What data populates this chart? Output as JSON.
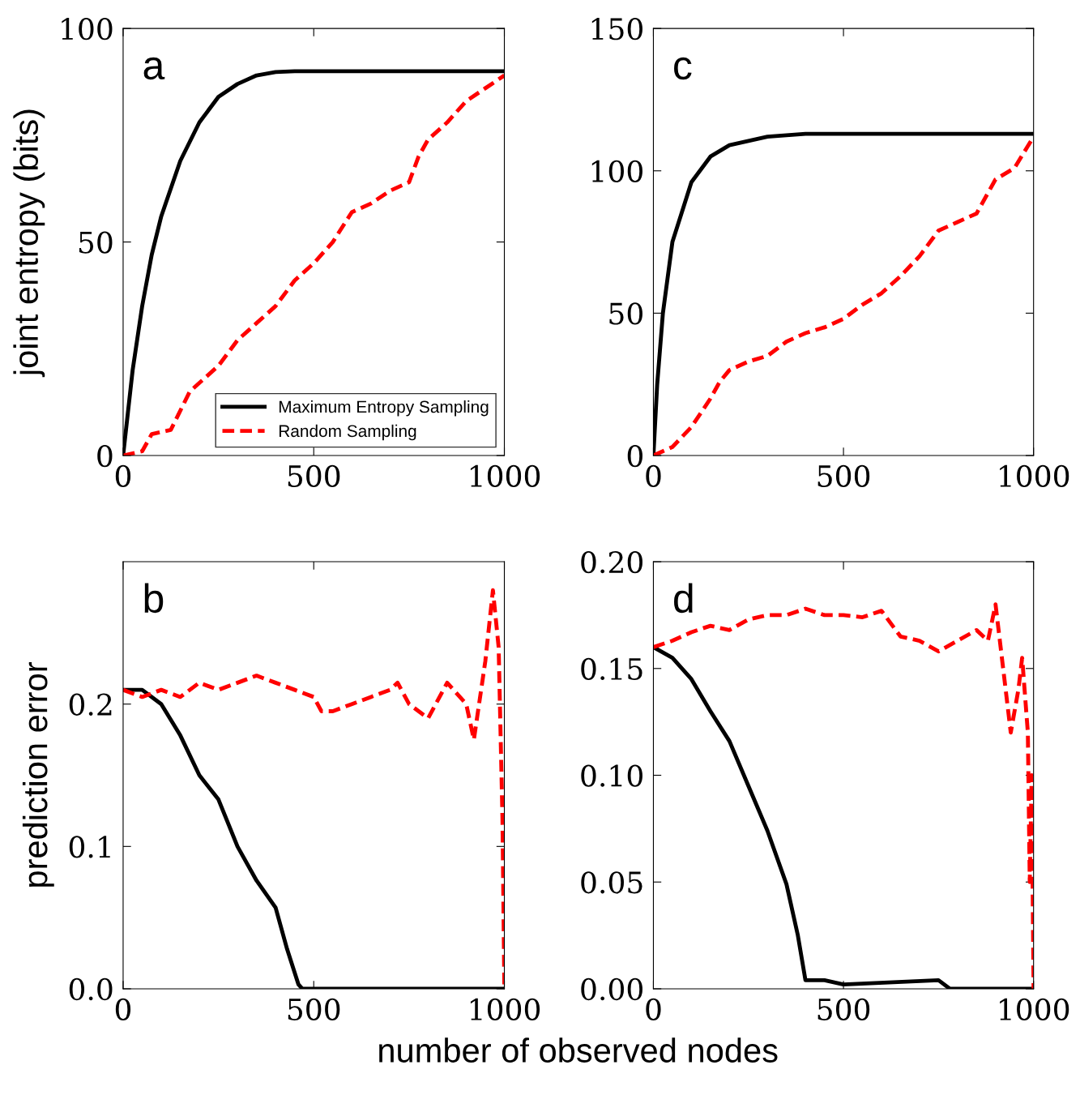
{
  "chart_data": [
    {
      "type": "line",
      "ylabel": "joint entropy (bits)",
      "annotations": [
        "a"
      ],
      "xlim": [
        0,
        1000
      ],
      "xticks": [
        0,
        500,
        1000
      ],
      "ylim": [
        0,
        100
      ],
      "yticks": [
        0,
        50,
        100
      ],
      "legend": "bottom right",
      "grid": false,
      "series": [
        {
          "name": "Maximum Entropy Sampling",
          "color": "#000000",
          "line_style": "solid",
          "x": [
            0,
            25,
            50,
            75,
            100,
            150,
            200,
            250,
            300,
            350,
            400,
            450,
            500,
            1000
          ],
          "values": [
            0,
            20,
            35,
            47,
            56,
            69,
            78,
            84,
            87,
            89,
            89.8,
            90,
            90,
            90
          ]
        },
        {
          "name": "Random Sampling",
          "color": "#ff0000",
          "line_style": "dashed",
          "x": [
            0,
            50,
            75,
            125,
            175,
            250,
            300,
            350,
            400,
            450,
            500,
            550,
            600,
            650,
            700,
            750,
            775,
            800,
            850,
            900,
            950,
            1000
          ],
          "values": [
            0,
            1,
            5,
            6,
            15,
            21,
            27,
            31,
            35,
            41,
            45,
            50,
            57,
            59,
            62,
            64,
            70,
            74,
            78,
            83,
            86,
            89
          ]
        }
      ]
    },
    {
      "type": "line",
      "annotations": [
        "c"
      ],
      "xlim": [
        0,
        1000
      ],
      "xticks": [
        0,
        500,
        1000
      ],
      "ylim": [
        0,
        150
      ],
      "yticks": [
        0,
        50,
        100,
        150
      ],
      "grid": false,
      "series": [
        {
          "color": "#000000",
          "line_style": "solid",
          "x": [
            0,
            10,
            25,
            50,
            100,
            150,
            200,
            300,
            400,
            1000
          ],
          "values": [
            0,
            25,
            50,
            75,
            96,
            105,
            109,
            112,
            113,
            113
          ]
        },
        {
          "color": "#ff0000",
          "line_style": "dashed",
          "x": [
            0,
            50,
            100,
            150,
            175,
            200,
            250,
            300,
            350,
            400,
            450,
            500,
            550,
            600,
            650,
            700,
            750,
            800,
            850,
            900,
            950,
            1000
          ],
          "values": [
            0,
            3,
            10,
            20,
            26,
            30,
            33,
            35,
            40,
            43,
            45,
            48,
            53,
            57,
            63,
            70,
            79,
            82,
            85,
            97,
            101,
            112
          ]
        }
      ]
    },
    {
      "type": "line",
      "ylabel": "prediction error",
      "xlabel": "number of observed nodes",
      "annotations": [
        "b"
      ],
      "xlim": [
        0,
        1000
      ],
      "xticks": [
        0,
        500,
        1000
      ],
      "ylim": [
        0,
        0.3
      ],
      "yticks": [
        {
          "value": 0,
          "label": "0.0"
        },
        {
          "value": 0.1,
          "label": "0.1"
        },
        {
          "value": 0.2,
          "label": "0.2"
        }
      ],
      "grid": false,
      "series": [
        {
          "color": "#000000",
          "line_style": "solid",
          "x": [
            0,
            50,
            100,
            150,
            200,
            250,
            300,
            350,
            400,
            430,
            460,
            470,
            1000
          ],
          "values": [
            0.21,
            0.21,
            0.2,
            0.178,
            0.15,
            0.133,
            0.1,
            0.076,
            0.057,
            0.028,
            0.003,
            0,
            0
          ]
        },
        {
          "color": "#ff0000",
          "line_style": "dashed",
          "x": [
            0,
            50,
            100,
            150,
            200,
            250,
            300,
            350,
            400,
            450,
            500,
            520,
            550,
            600,
            650,
            700,
            720,
            750,
            800,
            850,
            900,
            920,
            950,
            970,
            985,
            995,
            1000
          ],
          "values": [
            0.21,
            0.205,
            0.21,
            0.205,
            0.215,
            0.21,
            0.215,
            0.22,
            0.215,
            0.21,
            0.205,
            0.195,
            0.195,
            0.2,
            0.205,
            0.21,
            0.215,
            0.2,
            0.19,
            0.215,
            0.2,
            0.175,
            0.23,
            0.28,
            0.24,
            0.12,
            0
          ]
        }
      ]
    },
    {
      "type": "line",
      "annotations": [
        "d"
      ],
      "xlim": [
        0,
        1000
      ],
      "xticks": [
        0,
        500,
        1000
      ],
      "ylim": [
        0,
        0.2
      ],
      "yticks": [
        {
          "value": 0,
          "label": "0.00"
        },
        {
          "value": 0.05,
          "label": "0.05"
        },
        {
          "value": 0.1,
          "label": "0.10"
        },
        {
          "value": 0.15,
          "label": "0.15"
        },
        {
          "value": 0.2,
          "label": "0.20"
        }
      ],
      "grid": false,
      "series": [
        {
          "color": "#000000",
          "line_style": "solid",
          "x": [
            0,
            50,
            100,
            150,
            200,
            250,
            300,
            350,
            380,
            400,
            450,
            500,
            750,
            780,
            1000
          ],
          "values": [
            0.16,
            0.155,
            0.145,
            0.13,
            0.116,
            0.095,
            0.074,
            0.049,
            0.025,
            0.004,
            0.004,
            0.002,
            0.004,
            0,
            0
          ]
        },
        {
          "color": "#ff0000",
          "line_style": "dashed",
          "x": [
            0,
            50,
            100,
            150,
            200,
            250,
            300,
            350,
            400,
            450,
            500,
            550,
            600,
            650,
            700,
            750,
            800,
            850,
            880,
            900,
            920,
            940,
            960,
            970,
            985,
            990,
            995,
            1000
          ],
          "values": [
            0.16,
            0.163,
            0.167,
            0.17,
            0.168,
            0.173,
            0.175,
            0.175,
            0.178,
            0.175,
            0.175,
            0.174,
            0.177,
            0.165,
            0.163,
            0.158,
            0.163,
            0.168,
            0.163,
            0.18,
            0.15,
            0.12,
            0.14,
            0.155,
            0.12,
            0.05,
            0.1,
            0
          ]
        }
      ]
    }
  ]
}
